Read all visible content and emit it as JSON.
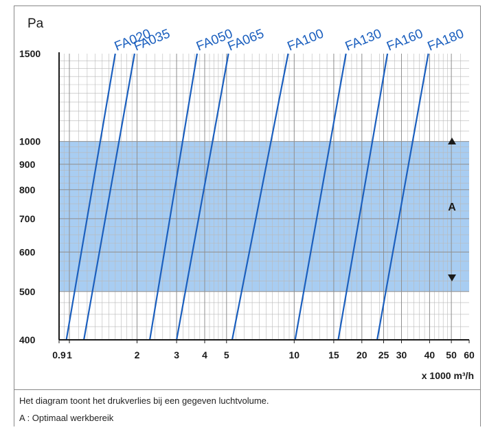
{
  "chart_data": {
    "type": "line",
    "y_axis": {
      "unit_label": "Pa",
      "scale": "log",
      "range": [
        400,
        1500
      ],
      "ticks": [
        400,
        500,
        600,
        700,
        800,
        900,
        1000,
        1500
      ],
      "tick_labels": [
        "400",
        "500",
        "600",
        "700",
        "800",
        "900",
        "1000",
        "1500"
      ]
    },
    "x_axis": {
      "unit_label": "x 1000 m³/h",
      "scale": "log",
      "range": [
        0.9,
        60
      ],
      "ticks": [
        0.9,
        1,
        2,
        3,
        4,
        5,
        10,
        15,
        20,
        25,
        30,
        40,
        50,
        60
      ],
      "tick_labels": [
        "0.9",
        "1",
        "2",
        "3",
        "4",
        "5",
        "10",
        "15",
        "20",
        "25",
        "30",
        "40",
        "50",
        "60"
      ]
    },
    "grid": true,
    "series": [
      {
        "name": "FA020",
        "x": [
          0.97,
          1.6
        ],
        "y": [
          400,
          1500
        ]
      },
      {
        "name": "FA035",
        "x": [
          1.16,
          1.95
        ],
        "y": [
          400,
          1500
        ]
      },
      {
        "name": "FA050",
        "x": [
          2.28,
          3.7
        ],
        "y": [
          400,
          1500
        ]
      },
      {
        "name": "FA065",
        "x": [
          3.0,
          5.1
        ],
        "y": [
          400,
          1500
        ]
      },
      {
        "name": "FA100",
        "x": [
          5.3,
          9.4
        ],
        "y": [
          400,
          1500
        ]
      },
      {
        "name": "FA130",
        "x": [
          10.1,
          17.0
        ],
        "y": [
          400,
          1500
        ]
      },
      {
        "name": "FA160",
        "x": [
          15.7,
          26.0
        ],
        "y": [
          400,
          1500
        ]
      },
      {
        "name": "FA180",
        "x": [
          23.4,
          39.5
        ],
        "y": [
          400,
          1500
        ]
      }
    ],
    "region": {
      "label": "A",
      "y_range": [
        500,
        1000
      ],
      "color": "#a8cdf2"
    },
    "colors": {
      "series": "#1b5fbe",
      "grid": "#b9b9b9",
      "axis": "#1a1a1a"
    }
  },
  "captions": {
    "description": "Het diagram toont het drukverlies bij een gegeven luchtvolume.",
    "legend_a": "A : Optimaal werkbereik"
  }
}
